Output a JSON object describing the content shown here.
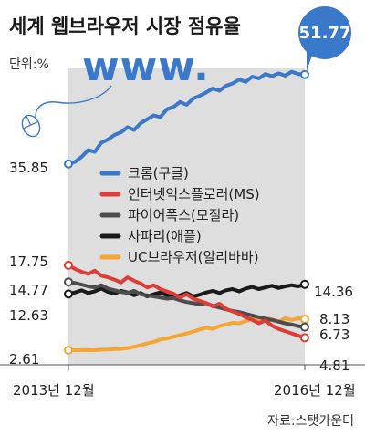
{
  "title": "세계 웹브라우저 시장 점유율",
  "unit_label": "단위:%",
  "decor_text": "www.",
  "source": "자료:스탯카운터",
  "colors": {
    "chrome": "#3a78c9",
    "ie": "#e03c37",
    "firefox": "#4d4d4d",
    "safari": "#1a1a1a",
    "uc": "#f5a531",
    "shade": "#dedede",
    "bubble": "#3a78c9"
  },
  "chart_data": {
    "type": "line",
    "title": "세계 웹브라우저 시장 점유율",
    "xlabel": "",
    "ylabel": "",
    "unit": "단위:%",
    "x_start_label": "2013년 12월",
    "x_end_label": "2016년 12월",
    "ylim": [
      0,
      55
    ],
    "series": [
      {
        "key": "chrome",
        "name": "크롬(구글)",
        "start_value": 35.85,
        "end_value": 51.77,
        "values": [
          35.85,
          36.2,
          37.1,
          38.3,
          38.0,
          39.6,
          40.2,
          41.0,
          41.5,
          42.4,
          41.9,
          43.1,
          43.8,
          44.5,
          44.2,
          45.6,
          46.0,
          46.9,
          46.4,
          47.5,
          48.0,
          48.6,
          49.3,
          48.9,
          49.8,
          50.2,
          50.9,
          50.5,
          51.4,
          51.1,
          51.9,
          51.5,
          52.0,
          51.6,
          52.3,
          51.9,
          51.77
        ]
      },
      {
        "key": "ie",
        "name": "인터넷익스플로러(MS)",
        "start_value": 17.75,
        "end_value": 4.81,
        "values": [
          17.75,
          17.1,
          16.6,
          16.2,
          16.8,
          15.9,
          15.6,
          15.2,
          14.7,
          15.6,
          15.0,
          14.5,
          13.8,
          14.2,
          13.5,
          13.1,
          12.7,
          12.0,
          12.6,
          11.8,
          11.4,
          11.0,
          10.4,
          10.9,
          10.0,
          9.5,
          9.1,
          8.5,
          8.0,
          7.4,
          7.9,
          7.0,
          6.4,
          6.0,
          5.6,
          5.2,
          4.81
        ]
      },
      {
        "key": "firefox",
        "name": "파이어폭스(모질라)",
        "start_value": 14.77,
        "end_value": 6.73,
        "values": [
          14.77,
          14.6,
          14.3,
          14.0,
          13.8,
          14.2,
          13.6,
          13.3,
          13.0,
          12.8,
          13.2,
          12.6,
          12.4,
          12.2,
          12.0,
          11.8,
          11.9,
          11.5,
          11.2,
          11.0,
          10.8,
          11.0,
          10.5,
          10.2,
          9.9,
          9.6,
          9.4,
          9.1,
          8.8,
          8.5,
          8.2,
          8.0,
          7.7,
          7.4,
          7.2,
          6.9,
          6.73
        ]
      },
      {
        "key": "safari",
        "name": "사파리(애플)",
        "start_value": 12.63,
        "end_value": 14.36,
        "values": [
          12.63,
          12.9,
          13.3,
          12.8,
          13.1,
          13.6,
          13.0,
          12.7,
          13.2,
          12.9,
          12.4,
          12.8,
          12.2,
          12.6,
          12.9,
          12.4,
          12.0,
          12.4,
          12.8,
          12.2,
          12.5,
          12.9,
          13.2,
          12.8,
          13.3,
          13.5,
          13.1,
          13.6,
          13.9,
          13.5,
          13.8,
          14.1,
          13.7,
          14.0,
          14.2,
          14.0,
          14.36
        ]
      },
      {
        "key": "uc",
        "name": "UC브라우저(알리바바)",
        "start_value": 2.61,
        "end_value": 8.13,
        "values": [
          2.61,
          2.6,
          2.62,
          2.65,
          2.6,
          2.7,
          2.72,
          2.8,
          2.85,
          3.0,
          3.2,
          3.5,
          3.8,
          4.1,
          4.5,
          4.7,
          5.0,
          5.3,
          5.6,
          5.9,
          6.3,
          6.6,
          6.4,
          6.9,
          7.2,
          7.5,
          7.4,
          7.8,
          8.2,
          7.9,
          8.4,
          8.1,
          7.7,
          8.3,
          8.0,
          8.3,
          8.13
        ]
      }
    ]
  }
}
